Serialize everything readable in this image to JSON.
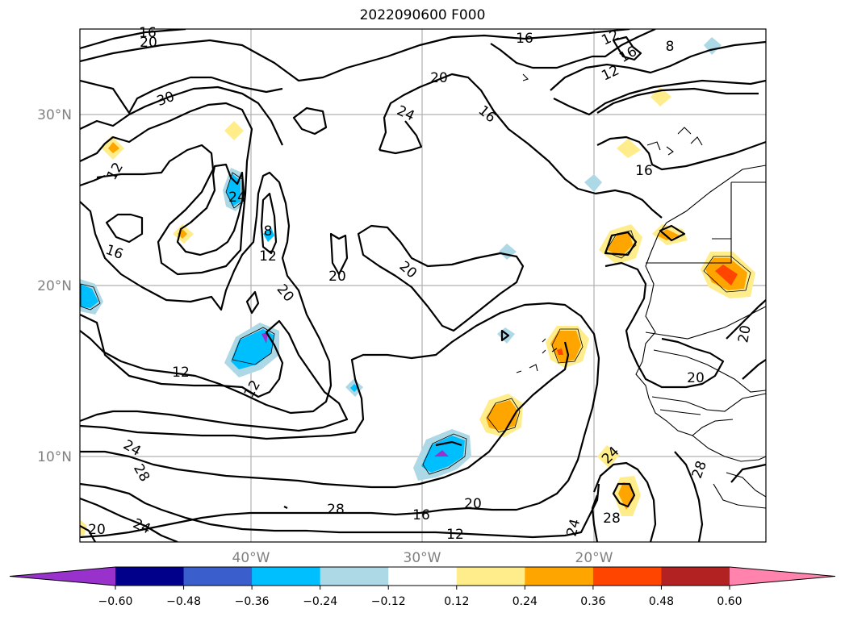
{
  "title": "2022090600 F000",
  "lat_labels": [
    "30°N",
    "20°N",
    "10°N"
  ],
  "lon_labels": [
    "40°W",
    "30°W",
    "20°W"
  ],
  "contour_labels": [
    "16",
    "20",
    "16",
    "12",
    "8",
    "12",
    "16",
    "20",
    "24",
    "16",
    "30",
    "16",
    "12",
    "24",
    "8",
    "12",
    "16",
    "20",
    "20",
    "20",
    "12",
    "12",
    "24",
    "28",
    "28",
    "16",
    "20",
    "12",
    "24",
    "24",
    "28",
    "20",
    "24",
    "28",
    "20"
  ],
  "colorbar": {
    "tick_labels": [
      "−0.60",
      "−0.48",
      "−0.36",
      "−0.24",
      "−0.12",
      "0.12",
      "0.24",
      "0.36",
      "0.48",
      "0.60"
    ],
    "colors": [
      "#9932cc",
      "#00008b",
      "#3a5fcd",
      "#00bfff",
      "#add8e6",
      "#ffffff",
      "#ffec8b",
      "#ffa500",
      "#ff4500",
      "#b22222",
      "#ff83ac"
    ]
  }
}
